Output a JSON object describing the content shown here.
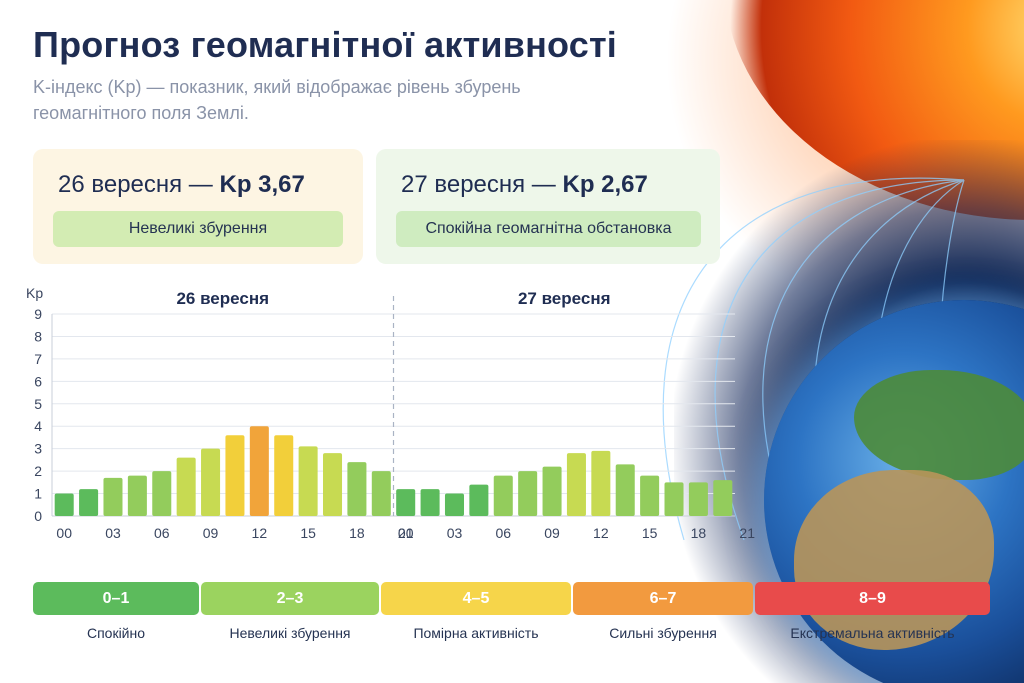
{
  "header": {
    "title": "Прогноз геомагнітної активності",
    "subtitle": "K-індекс (Kp) — показник, який відображає рівень збурень геомагнітного поля Землі."
  },
  "cards": [
    {
      "date": "26 вересня",
      "dash": " — ",
      "kp": "Kp 3,67",
      "status": "Невеликі збурення"
    },
    {
      "date": "27 вересня",
      "dash": " — ",
      "kp": "Kp 2,67",
      "status": "Спокійна геомагнітна обстановка"
    }
  ],
  "chart_data": {
    "type": "bar",
    "ylabel": "Kp",
    "ylim": [
      0,
      9
    ],
    "yticks": [
      "0",
      "1",
      "2",
      "3",
      "4",
      "5",
      "6",
      "7",
      "8",
      "9"
    ],
    "grid": true,
    "panels": [
      {
        "title": "26 вересня",
        "tick_labels": [
          "00",
          "03",
          "06",
          "09",
          "12",
          "15",
          "18",
          "21"
        ],
        "values": [
          1.0,
          1.2,
          1.7,
          1.8,
          2.0,
          2.6,
          3.0,
          3.6,
          4.0,
          3.6,
          3.1,
          2.8,
          2.4,
          2.0
        ]
      },
      {
        "title": "27 вересня",
        "tick_labels": [
          "00",
          "03",
          "06",
          "09",
          "12",
          "15",
          "18",
          "21"
        ],
        "values": [
          1.2,
          1.2,
          1.0,
          1.4,
          1.8,
          2.0,
          2.2,
          2.8,
          2.9,
          2.3,
          1.8,
          1.5,
          1.5,
          1.6
        ]
      }
    ],
    "color_scale": [
      "#5cbb5c",
      "#93cc5c",
      "#c7da52",
      "#f2cf3a",
      "#f1a43a"
    ]
  },
  "legend_scale": [
    {
      "range": "0–1",
      "label": "Спокійно",
      "color": "#5cbb5c"
    },
    {
      "range": "2–3",
      "label": "Невеликі збурення",
      "color": "#9bd35f"
    },
    {
      "range": "4–5",
      "label": "Помірна активність",
      "color": "#f6d54a"
    },
    {
      "range": "6–7",
      "label": "Сильні збурення",
      "color": "#f29a3f"
    },
    {
      "range": "8–9",
      "label": "Екстремальна активність",
      "color": "#e84b4b"
    }
  ]
}
